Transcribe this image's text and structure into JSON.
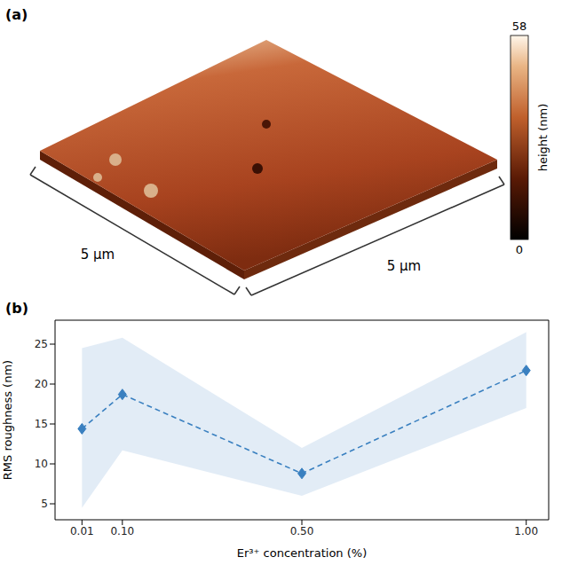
{
  "chart_data": [
    {
      "type": "image",
      "panel": "(a)",
      "x_label": "5 µm",
      "y_label": "5 µm",
      "colorbar": {
        "label": "height (nm)",
        "range": [
          0,
          58
        ],
        "ticks": [
          0,
          58
        ]
      }
    },
    {
      "type": "line",
      "panel": "(b)",
      "x": [
        0.01,
        0.1,
        0.5,
        1.0
      ],
      "values": [
        14.4,
        18.7,
        8.8,
        21.7
      ],
      "band": {
        "lower": [
          4.5,
          11.7,
          6.0,
          17.0
        ],
        "upper": [
          24.5,
          25.8,
          12.0,
          26.5
        ]
      },
      "xlabel": "Er³⁺ concentration (%)",
      "ylabel": "RMS roughness (nm)",
      "xlim": [
        -0.05,
        1.05
      ],
      "ylim": [
        3,
        28
      ],
      "xticks": [
        0.01,
        {
          "value": 0.1,
          "label": "0.10"
        },
        {
          "value": 0.5,
          "label": "0.50"
        },
        {
          "value": 1.0,
          "label": "1.00"
        }
      ],
      "yticks": [
        5,
        10,
        15,
        20,
        25
      ],
      "color": "#3a80c0",
      "marker": "diamond",
      "line_style": "dashed",
      "grid": false
    }
  ]
}
